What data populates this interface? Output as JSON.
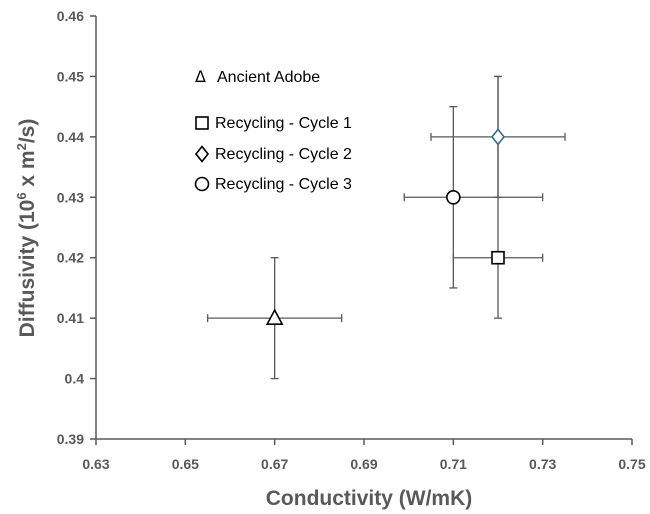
{
  "chart_data": {
    "type": "scatter",
    "xlabel": "Conductivity (W/mK)",
    "ylabel": {
      "prefix": "Diffusivity (10",
      "exp1": "6",
      "middle": " x m",
      "exp2": "2",
      "suffix": "/s)"
    },
    "xlim": [
      0.63,
      0.75
    ],
    "ylim": [
      0.39,
      0.46
    ],
    "x_ticks": [
      "0.63",
      "0.65",
      "0.67",
      "0.69",
      "0.71",
      "0.73",
      "0.75"
    ],
    "y_ticks": [
      "0.39",
      "0.4",
      "0.41",
      "0.42",
      "0.43",
      "0.44",
      "0.45",
      "0.46"
    ],
    "grid": false,
    "legend_position": "top-left inside plot",
    "legend_title": {
      "symbol": "Δ",
      "label": "Ancient Adobe"
    },
    "series": [
      {
        "name": "Ancient Adobe",
        "marker": "triangle",
        "x": 0.67,
        "y": 0.41,
        "x_err": [
          0.655,
          0.685
        ],
        "y_err": [
          0.4,
          0.42
        ],
        "edge_color": "#000000"
      },
      {
        "name": "Recycling - Cycle 1",
        "marker": "square",
        "x": 0.72,
        "y": 0.42,
        "x_err": [
          0.71,
          0.73
        ],
        "y_err": [
          0.41,
          0.45
        ],
        "edge_color": "#000000"
      },
      {
        "name": "Recycling - Cycle 2",
        "marker": "diamond",
        "x": 0.72,
        "y": 0.44,
        "x_err": [
          0.705,
          0.735
        ],
        "y_err": [
          0.43,
          0.45
        ],
        "edge_color": "#31708a"
      },
      {
        "name": "Recycling - Cycle 3",
        "marker": "circle",
        "x": 0.71,
        "y": 0.43,
        "x_err": [
          0.699,
          0.73
        ],
        "y_err": [
          0.415,
          0.445
        ],
        "edge_color": "#000000"
      }
    ],
    "legend_entries": [
      {
        "marker": "square",
        "label": "Recycling - Cycle 1"
      },
      {
        "marker": "diamond",
        "label": "Recycling - Cycle 2"
      },
      {
        "marker": "circle",
        "label": "Recycling - Cycle 3"
      }
    ],
    "colors": {
      "axis": "#595959",
      "error_bar": "#595959",
      "marker_edge": "#000000",
      "highlight_edge": "#31708a"
    }
  }
}
